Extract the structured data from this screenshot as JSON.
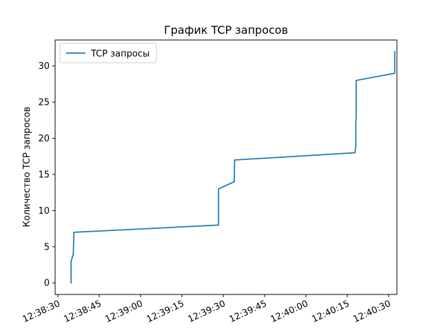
{
  "chart_data": {
    "type": "line",
    "title": "График TCP запросов",
    "xlabel": "",
    "ylabel": "Количество TCP запросов",
    "x_ticks": [
      "12:38:30",
      "12:38:45",
      "12:39:00",
      "12:39:15",
      "12:39:30",
      "12:39:45",
      "12:40:00",
      "12:40:15",
      "12:40:30"
    ],
    "y_ticks": [
      "0",
      "5",
      "10",
      "15",
      "20",
      "25",
      "30"
    ],
    "xlim": [
      "12:38:29",
      "12:40:33"
    ],
    "ylim": [
      -1.6,
      33.6
    ],
    "legend_position": "upper left",
    "grid": false,
    "series": [
      {
        "name": "TCP запросы",
        "color": "#1f77b4",
        "points": [
          {
            "x": "12:38:34.8",
            "y": 0
          },
          {
            "x": "12:38:34.8",
            "y": 3
          },
          {
            "x": "12:38:35.6",
            "y": 4
          },
          {
            "x": "12:38:35.8",
            "y": 7
          },
          {
            "x": "12:39:28.3",
            "y": 8
          },
          {
            "x": "12:39:28.3",
            "y": 13
          },
          {
            "x": "12:39:34.0",
            "y": 14
          },
          {
            "x": "12:39:34.1",
            "y": 17
          },
          {
            "x": "12:40:17.8",
            "y": 18
          },
          {
            "x": "12:40:18.1",
            "y": 19
          },
          {
            "x": "12:40:18.1",
            "y": 22
          },
          {
            "x": "12:40:18.2",
            "y": 23
          },
          {
            "x": "12:40:18.2",
            "y": 28
          },
          {
            "x": "12:40:32.2",
            "y": 29
          },
          {
            "x": "12:40:32.2",
            "y": 32
          }
        ]
      }
    ]
  }
}
